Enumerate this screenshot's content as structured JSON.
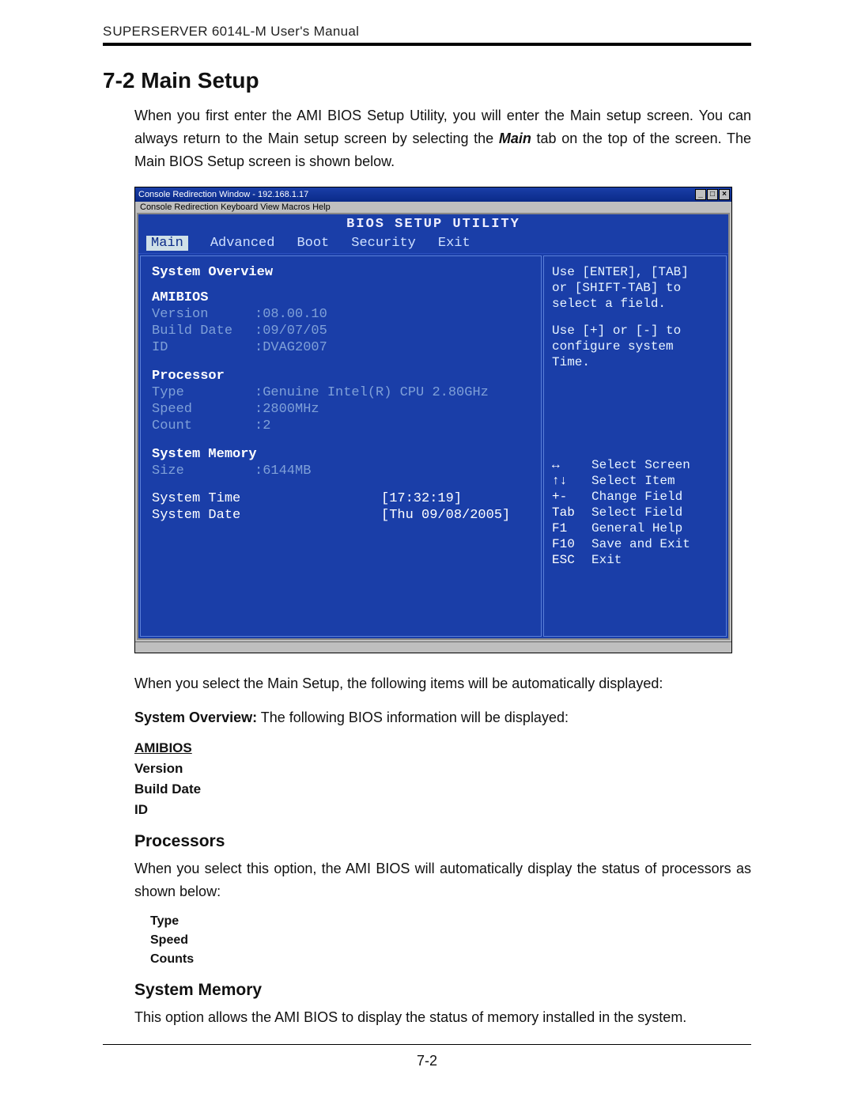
{
  "header": {
    "product": "SUPERSERVER 6014L-M",
    "tail": "User's Manual"
  },
  "section": {
    "title": "7-2 Main Setup",
    "intro_part1": "When you first enter the AMI BIOS Setup Utility, you will enter the Main setup screen. You can always return to the Main setup screen by selecting the ",
    "intro_bold": "Main",
    "intro_part2": " tab on the top of the screen. The Main BIOS Setup screen is shown below."
  },
  "bios": {
    "window_title": "Console Redirection Window - 192.168.1.17",
    "window_menu": "Console Redirection   Keyboard   View   Macros   Help",
    "title": "BIOS SETUP UTILITY",
    "tabs": [
      "Main",
      "Advanced",
      "Boot",
      "Security",
      "Exit"
    ],
    "active_tab_index": 0,
    "left": {
      "title": "System Overview",
      "amibios": {
        "label": "AMIBIOS",
        "version": {
          "label": "Version",
          "value": "08.00.10"
        },
        "build": {
          "label": "Build Date:",
          "value": "09/07/05"
        },
        "id": {
          "label": "ID",
          "value": "DVAG2007"
        }
      },
      "processor": {
        "label": "Processor",
        "type": {
          "label": "Type",
          "value": "Genuine Intel(R) CPU 2.80GHz"
        },
        "speed": {
          "label": "Speed",
          "value": "2800MHz"
        },
        "count": {
          "label": "Count",
          "value": "2"
        }
      },
      "memory": {
        "label": "System Memory",
        "size": {
          "label": "Size",
          "value": "6144MB"
        }
      },
      "time": {
        "label": "System Time",
        "value": "[17:32:19]"
      },
      "date": {
        "label": "System Date",
        "value": "[Thu 09/08/2005]"
      }
    },
    "right": {
      "help1": "Use [ENTER], [TAB]",
      "help2": "or [SHIFT-TAB] to",
      "help3": "select a field.",
      "help4": "Use [+] or [-] to",
      "help5": "configure system Time.",
      "nav": [
        {
          "key": "↔",
          "desc": "Select Screen"
        },
        {
          "key": "↑↓",
          "desc": "Select Item"
        },
        {
          "key": "+-",
          "desc": "Change Field"
        },
        {
          "key": "Tab",
          "desc": "Select Field"
        },
        {
          "key": "F1",
          "desc": "General Help"
        },
        {
          "key": "F10",
          "desc": "Save and Exit"
        },
        {
          "key": "ESC",
          "desc": "Exit"
        }
      ]
    },
    "colors": {
      "bios_bg": "#1a3ea8",
      "bios_text": "#dfefff",
      "bios_dim": "#7fa0d8",
      "bios_active_bg": "#cfe0e8",
      "window_bar": "#0a2a88"
    }
  },
  "after_shot": {
    "p1": "When you select the  Main Setup, the following items will be automatically displayed:",
    "sys_overview_label": "System Overview:",
    "sys_overview_text": " The following BIOS information will be displayed:",
    "list1": {
      "head": "AMIBIOS",
      "items": [
        "Version",
        "Build Date",
        "ID"
      ]
    },
    "proc_head": "Processors",
    "proc_text": "When you select this option, the AMI BIOS will automatically display the status of processors as shown below:",
    "proc_items": [
      "Type",
      "Speed",
      "Counts"
    ],
    "mem_head": "System Memory",
    "mem_text": "This option allows the AMI BIOS to display the status of memory installed in the system."
  },
  "page_number": "7-2"
}
